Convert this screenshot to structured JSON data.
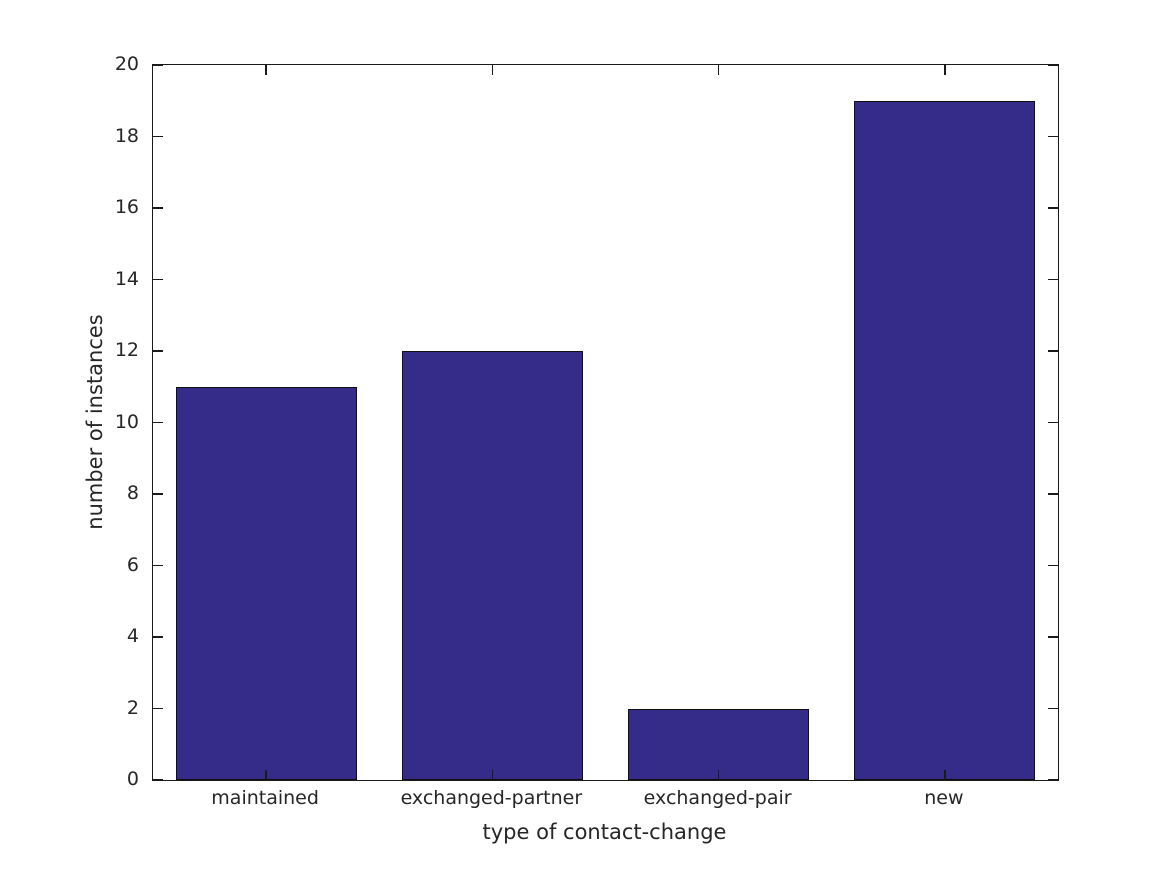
{
  "figure": {
    "background_color": "#ffffff",
    "text_color": "#262626",
    "axis_color": "#1a1a1a"
  },
  "chart_data": {
    "type": "bar",
    "title": "",
    "xlabel": "type of contact-change",
    "ylabel": "number of instances",
    "categories": [
      "maintained",
      "exchanged-partner",
      "exchanged-pair",
      "new"
    ],
    "values": [
      11,
      12,
      2,
      19
    ],
    "ylim": [
      0,
      20
    ],
    "yticks": [
      0,
      2,
      4,
      6,
      8,
      10,
      12,
      14,
      16,
      18,
      20
    ],
    "bar_color": "#352C8A",
    "bar_edge_color": "#101010",
    "bar_width_fraction": 0.8,
    "grid": false,
    "box": true,
    "tick_direction": "in",
    "legend": null
  }
}
